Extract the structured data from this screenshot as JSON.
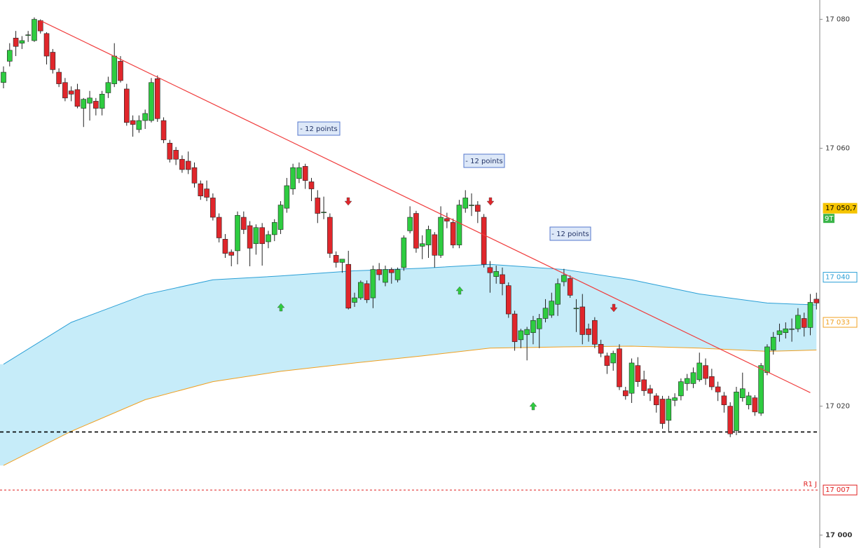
{
  "chart_data": {
    "type": "candlestick",
    "up_color": "#2ecc40",
    "down_color": "#e0262b",
    "ylim": [
      16998,
      17083
    ],
    "yticks": [
      {
        "value": 17080,
        "label": "17 080"
      },
      {
        "value": 17060,
        "label": "17 060"
      },
      {
        "value": 17020,
        "label": "17 020"
      },
      {
        "value": 17000,
        "label": "17 000"
      }
    ],
    "open": [
      17070.2,
      17073.5,
      17077.1,
      17076.3,
      17077.6,
      17076.7,
      17079.8,
      17077.8,
      17074.9,
      17071.8,
      17070.2,
      17068.9,
      17069.1,
      17066.2,
      17067.0,
      17067.3,
      17066.2,
      17068.6,
      17070.0,
      17073.5,
      17069.2,
      17064.3,
      17062.9,
      17064.3,
      17064.3,
      17070.8,
      17064.3,
      17060.8,
      17059.7,
      17058.3,
      17058.0,
      17057.0,
      17054.5,
      17053.7,
      17052.3,
      17049.3,
      17045.9,
      17043.9,
      17044.1,
      17049.3,
      17048.0,
      17045.2,
      17047.7,
      17045.5,
      17046.6,
      17047.4,
      17050.7,
      17053.7,
      17055.3,
      17057.2,
      17054.8,
      17052.3,
      17050.1,
      17049.3,
      17043.4,
      17042.3,
      17042.0,
      17036.1,
      17036.8,
      17039.0,
      17036.8,
      17041.2,
      17039.2,
      17041.2,
      17039.6,
      17041.5,
      17047.2,
      17049.9,
      17044.8,
      17045.0,
      17046.6,
      17043.4,
      17049.1,
      17048.5,
      17045.0,
      17050.7,
      17051.2,
      17051.2,
      17049.3,
      17041.5,
      17040.1,
      17040.4,
      17038.7,
      17034.3,
      17030.3,
      17031.1,
      17031.4,
      17032.0,
      17033.6,
      17034.1,
      17035.8,
      17039.3,
      17039.8,
      17035.2,
      17035.4,
      17032.0,
      17033.3,
      17029.6,
      17027.8,
      17026.7,
      17028.9,
      17022.4,
      17022.0,
      17026.3,
      17024.1,
      17022.7,
      17021.6,
      17021.1,
      17017.8,
      17020.9,
      17021.6,
      17023.5,
      17023.5,
      17024.1,
      17026.3,
      17024.6,
      17023.0,
      17021.6,
      17020.0,
      17016.2,
      17021.3,
      17020.2,
      17021.3,
      17018.9,
      17025.2,
      17028.7,
      17031.1,
      17031.4,
      17032.0,
      17032.0,
      17033.6,
      17032.2,
      17036.6
    ],
    "high": [
      17072.7,
      17076.3,
      17078.2,
      17077.4,
      17078.2,
      17080.3,
      17080.0,
      17078.0,
      17075.4,
      17072.4,
      17070.9,
      17069.6,
      17070.0,
      17067.8,
      17068.9,
      17067.8,
      17068.9,
      17071.1,
      17076.3,
      17074.3,
      17070.0,
      17065.1,
      17065.1,
      17066.0,
      17070.9,
      17071.3,
      17064.8,
      17061.3,
      17060.2,
      17058.9,
      17059.5,
      17057.8,
      17055.0,
      17055.0,
      17053.0,
      17049.9,
      17046.7,
      17044.3,
      17050.2,
      17050.2,
      17048.7,
      17048.2,
      17048.4,
      17047.2,
      17049.0,
      17051.8,
      17055.4,
      17057.6,
      17057.8,
      17057.6,
      17055.4,
      17053.5,
      17052.5,
      17049.9,
      17044.0,
      17042.8,
      17044.1,
      17037.6,
      17039.5,
      17039.5,
      17041.8,
      17042.2,
      17041.8,
      17041.5,
      17041.5,
      17046.5,
      17051.0,
      17050.3,
      17046.5,
      17048.0,
      17047.0,
      17051.0,
      17050.0,
      17049.1,
      17052.0,
      17053.5,
      17053.0,
      17051.8,
      17049.8,
      17042.5,
      17041.8,
      17041.5,
      17039.2,
      17034.8,
      17032.0,
      17032.3,
      17034.0,
      17034.3,
      17036.6,
      17037.6,
      17039.8,
      17041.3,
      17040.3,
      17036.6,
      17037.4,
      17032.8,
      17033.8,
      17030.3,
      17028.3,
      17028.6,
      17029.6,
      17023.0,
      17027.4,
      17027.6,
      17025.5,
      17023.3,
      17022.0,
      17021.6,
      17021.6,
      17022.0,
      17024.3,
      17025.0,
      17026.0,
      17028.3,
      17027.4,
      17025.8,
      17023.8,
      17022.2,
      17020.6,
      17023.0,
      17025.2,
      17022.2,
      17021.7,
      17026.7,
      17029.6,
      17031.5,
      17032.8,
      17033.0,
      17033.6,
      17035.2,
      17034.5,
      17037.4,
      17037.6
    ],
    "low": [
      17069.3,
      17072.7,
      17074.3,
      17075.4,
      17076.5,
      17076.5,
      17077.8,
      17073.0,
      17071.6,
      17069.5,
      17067.3,
      17067.3,
      17066.2,
      17063.3,
      17064.3,
      17065.1,
      17065.1,
      17067.8,
      17069.5,
      17070.2,
      17063.5,
      17061.8,
      17062.4,
      17063.0,
      17064.0,
      17064.1,
      17060.8,
      17057.8,
      17057.4,
      17056.2,
      17056.0,
      17053.9,
      17052.0,
      17051.8,
      17048.8,
      17045.4,
      17043.0,
      17041.7,
      17042.0,
      17046.7,
      17041.7,
      17043.5,
      17041.8,
      17044.5,
      17045.6,
      17046.7,
      17050.0,
      17052.8,
      17054.6,
      17053.7,
      17051.8,
      17048.4,
      17049.0,
      17043.0,
      17041.5,
      17040.7,
      17035.0,
      17035.4,
      17036.5,
      17036.0,
      17035.2,
      17039.5,
      17038.6,
      17039.0,
      17039.2,
      17041.0,
      17046.8,
      17043.8,
      17042.8,
      17043.0,
      17041.5,
      17043.0,
      17047.6,
      17044.5,
      17044.5,
      17050.0,
      17049.5,
      17048.4,
      17041.5,
      17037.6,
      17039.0,
      17037.2,
      17033.7,
      17028.6,
      17029.0,
      17027.1,
      17029.6,
      17029.0,
      17033.0,
      17033.7,
      17034.0,
      17038.6,
      17036.8,
      17031.5,
      17029.6,
      17030.0,
      17029.0,
      17027.6,
      17025.0,
      17025.5,
      17022.5,
      17021.0,
      17020.5,
      17023.0,
      17021.6,
      17020.8,
      17019.0,
      17016.5,
      17015.9,
      17020.0,
      17020.9,
      17022.4,
      17022.8,
      17023.8,
      17023.3,
      17022.5,
      17020.8,
      17019.0,
      17015.2,
      17015.5,
      17020.7,
      17019.5,
      17018.5,
      17018.5,
      17024.8,
      17028.0,
      17030.0,
      17030.5,
      17030.0,
      17031.5,
      17030.8,
      17031.0,
      17035.0
    ],
    "close": [
      17071.8,
      17075.2,
      17075.8,
      17076.7,
      17077.6,
      17080.0,
      17078.2,
      17074.3,
      17072.2,
      17070.0,
      17067.8,
      17068.4,
      17066.5,
      17067.6,
      17067.8,
      17066.2,
      17068.4,
      17070.2,
      17074.3,
      17070.5,
      17064.0,
      17063.7,
      17064.3,
      17065.4,
      17070.2,
      17064.6,
      17061.3,
      17058.3,
      17058.3,
      17056.7,
      17056.7,
      17054.6,
      17052.6,
      17052.4,
      17049.3,
      17046.1,
      17043.7,
      17043.4,
      17049.6,
      17047.4,
      17044.5,
      17047.7,
      17045.2,
      17046.6,
      17048.5,
      17051.2,
      17054.2,
      17057.0,
      17057.0,
      17055.0,
      17053.7,
      17049.9,
      17050.1,
      17043.7,
      17042.3,
      17042.8,
      17035.2,
      17036.8,
      17039.2,
      17036.5,
      17041.2,
      17040.4,
      17041.2,
      17040.7,
      17041.2,
      17046.1,
      17049.3,
      17044.5,
      17045.2,
      17047.4,
      17043.4,
      17049.3,
      17048.7,
      17045.0,
      17051.2,
      17052.3,
      17051.2,
      17050.2,
      17042.0,
      17040.7,
      17040.9,
      17039.0,
      17034.3,
      17030.0,
      17031.7,
      17031.9,
      17033.3,
      17033.6,
      17035.2,
      17036.3,
      17039.0,
      17040.3,
      17037.2,
      17035.2,
      17031.1,
      17031.1,
      17029.6,
      17028.2,
      17026.3,
      17028.2,
      17023.0,
      17021.6,
      17026.7,
      17023.8,
      17022.4,
      17022.0,
      17020.2,
      17017.3,
      17021.1,
      17021.3,
      17023.8,
      17024.3,
      17025.2,
      17026.7,
      17024.3,
      17023.0,
      17022.2,
      17020.2,
      17015.7,
      17022.2,
      17022.7,
      17021.6,
      17019.1,
      17026.3,
      17029.2,
      17030.7,
      17031.7,
      17032.0,
      17032.0,
      17034.1,
      17032.2,
      17036.1,
      17036.0
    ],
    "ma_upper": {
      "color": "#2a9fd6",
      "x": [
        0,
        11,
        23,
        34,
        45,
        57,
        68,
        79,
        91,
        102,
        113,
        124,
        132
      ],
      "values": [
        17026.5,
        17033.0,
        17037.3,
        17039.6,
        17040.2,
        17041.0,
        17041.4,
        17042.0,
        17041.2,
        17039.6,
        17037.4,
        17036.0,
        17035.7
      ]
    },
    "ma_lower": {
      "color": "#f0a020",
      "x": [
        0,
        11,
        23,
        34,
        45,
        57,
        68,
        79,
        91,
        102,
        113,
        124,
        132
      ],
      "values": [
        17010.8,
        17016.1,
        17021.0,
        17023.8,
        17025.4,
        17026.7,
        17027.8,
        17029.0,
        17029.2,
        17029.3,
        17029.0,
        17028.5,
        17028.7
      ]
    },
    "trendline": {
      "color": "#f03c3c",
      "x": [
        6,
        131
      ],
      "values": [
        17079.8,
        17022.1
      ]
    },
    "levels": [
      {
        "value": 17016,
        "color": "#000000"
      },
      {
        "value": 17007,
        "color": "#e02020",
        "label": "R1 J"
      }
    ],
    "price_tags": [
      {
        "value": 17050.7,
        "label": "17 050,7",
        "color": "#f5c400"
      },
      {
        "value": 17040,
        "label": "17 040",
        "color": "#2a9fd6"
      },
      {
        "value": 17033,
        "label": "17 033",
        "color": "#f0a020"
      },
      {
        "value": 17007,
        "label": "17 007",
        "color": "#e02020"
      }
    ],
    "countdown": "9T",
    "annotations": [
      "- 12 points",
      "- 12 points",
      "- 12 points"
    ]
  }
}
